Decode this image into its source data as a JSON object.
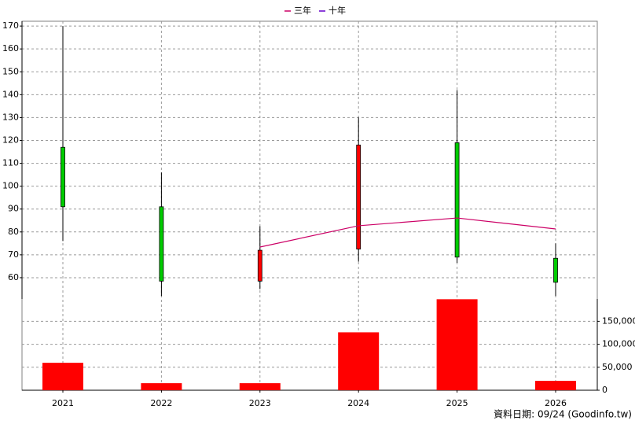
{
  "chart_data": {
    "type": "candlestick",
    "categories": [
      "2021",
      "2022",
      "2023",
      "2024",
      "2025",
      "2026"
    ],
    "open": [
      117,
      91,
      58.5,
      72.5,
      119,
      68.5
    ],
    "high": [
      170,
      106,
      82.5,
      130,
      142,
      75
    ],
    "low": [
      76,
      52,
      55,
      67,
      66.5,
      52
    ],
    "close": [
      91,
      58.5,
      72,
      118,
      69,
      58
    ],
    "up_color": "#ff0000",
    "down_color": "#00cc00",
    "lines": [
      {
        "name": "三年",
        "color": "#cc0066",
        "values": [
          null,
          null,
          73.4,
          82.7,
          86.1,
          81.3
        ]
      },
      {
        "name": "十年",
        "color": "#6600cc",
        "values": [
          null,
          null,
          null,
          null,
          null,
          null
        ]
      }
    ],
    "volume": {
      "color": "#ff0000",
      "values": [
        59700,
        15300,
        15300,
        126000,
        198000,
        20500
      ]
    },
    "ylim": [
      50.7,
      172.1
    ],
    "yticks": [
      60,
      70,
      80,
      90,
      100,
      110,
      120,
      130,
      140,
      150,
      160,
      170
    ],
    "y2lim": [
      0,
      198600
    ],
    "y2ticks": [
      0,
      {
        "value": 50000,
        "label": "50,000"
      },
      {
        "value": 100000,
        "label": "100,000"
      },
      {
        "value": 150000,
        "label": "150,000"
      }
    ],
    "grid": true,
    "footnote": "資料日期: 09/24 (Goodinfo.tw)"
  }
}
